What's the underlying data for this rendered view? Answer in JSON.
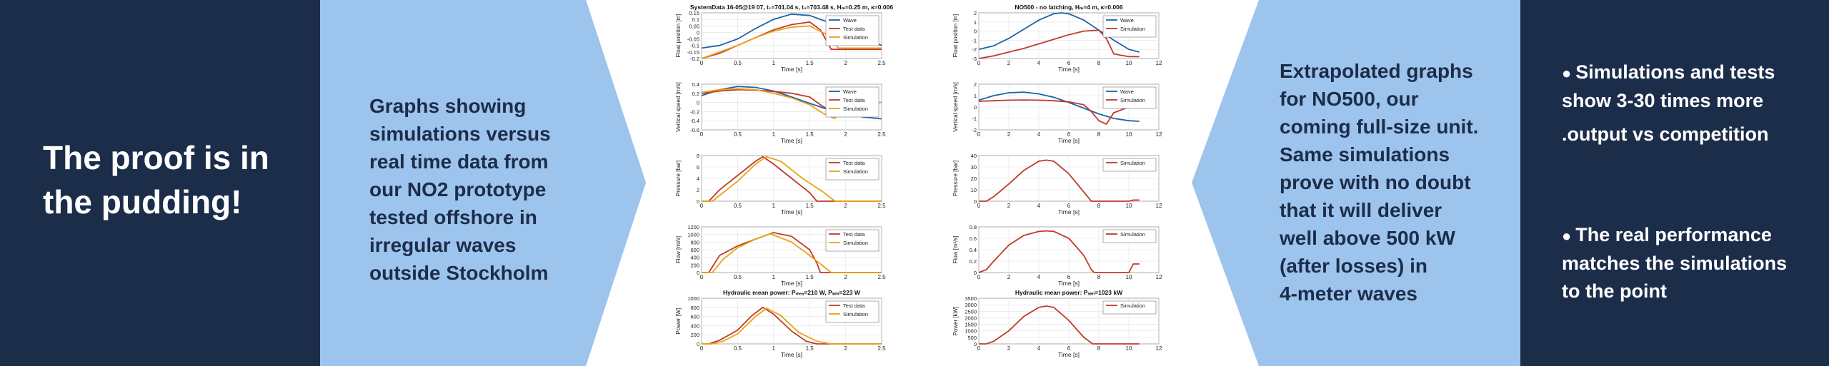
{
  "left_panel": {
    "headline_line1": "The proof is in",
    "headline_line2": "the pudding!"
  },
  "blue_left": {
    "lines": [
      "Graphs showing",
      "simulations versus",
      "real time data from",
      "our NO2 prototype",
      "tested offshore in",
      "irregular waves",
      "outside Stockholm"
    ]
  },
  "blue_right": {
    "lines": [
      "Extrapolated graphs",
      "for NO500, our",
      "coming full-size unit.",
      "Same simulations",
      "prove with no doubt",
      "that it will deliver",
      "well above 500 kW",
      "(after losses) in",
      "4-meter waves"
    ]
  },
  "right_panel": {
    "bullet1_line1": "Simulations and tests",
    "bullet1_line2": "show 3-30 times more",
    "bullet1_line3": ".output vs competition",
    "bullet2_line1": "The real performance",
    "bullet2_line2": "matches the simulations",
    "bullet2_line3": "to the point",
    "bullet_glyph": "●"
  },
  "colors": {
    "navy": "#1c2d4a",
    "light_blue": "#9dc4ec",
    "wave": "#1f63a8",
    "test_data": "#c0392b",
    "simulation": "#e8a317"
  },
  "chart_data": [
    {
      "type": "line",
      "id": "l1",
      "title": "SystemData 16-05@19 07, t₁=701.04 s, t₂=703.48 s, Hₘ=0.25 m, κ=0.006",
      "xlabel": "Time [s]",
      "ylabel": "Float position [m]",
      "xlim": [
        0,
        2.5
      ],
      "ylim": [
        -0.2,
        0.15
      ],
      "xticks": [
        0,
        0.5,
        1,
        1.5,
        2,
        2.5
      ],
      "yticks": [
        -0.2,
        -0.15,
        -0.1,
        -0.05,
        0,
        0.05,
        0.1,
        0.15
      ],
      "grid": true,
      "legend": "top-right",
      "series": [
        {
          "name": "Wave",
          "color": "wave",
          "x": [
            0,
            0.25,
            0.5,
            0.75,
            1,
            1.25,
            1.5,
            1.75,
            2,
            2.25,
            2.5
          ],
          "y": [
            -0.12,
            -0.1,
            -0.05,
            0.03,
            0.1,
            0.14,
            0.13,
            0.08,
            0.02,
            -0.04,
            -0.1
          ]
        },
        {
          "name": "Test data",
          "color": "test_data",
          "x": [
            0,
            0.25,
            0.5,
            0.75,
            1,
            1.25,
            1.5,
            1.65,
            1.72,
            1.8,
            2.5
          ],
          "y": [
            -0.2,
            -0.16,
            -0.1,
            -0.04,
            0.02,
            0.06,
            0.08,
            0.02,
            -0.05,
            -0.13,
            -0.13
          ]
        },
        {
          "name": "Simulation",
          "color": "simulation",
          "x": [
            0,
            0.25,
            0.5,
            0.75,
            1,
            1.25,
            1.5,
            1.75,
            1.9,
            2.5
          ],
          "y": [
            -0.2,
            -0.15,
            -0.1,
            -0.04,
            0.01,
            0.04,
            0.05,
            -0.02,
            -0.12,
            -0.12
          ]
        }
      ]
    },
    {
      "type": "line",
      "id": "l2",
      "title": "",
      "xlabel": "Time [s]",
      "ylabel": "Vertical speed [m/s]",
      "xlim": [
        0,
        2.5
      ],
      "ylim": [
        -0.6,
        0.4
      ],
      "xticks": [
        0,
        0.5,
        1,
        1.5,
        2,
        2.5
      ],
      "yticks": [
        -0.6,
        -0.4,
        -0.2,
        0,
        0.2,
        0.4
      ],
      "grid": true,
      "legend": "top-right",
      "series": [
        {
          "name": "Wave",
          "color": "wave",
          "x": [
            0,
            0.25,
            0.5,
            0.75,
            1,
            1.25,
            1.5,
            1.75,
            2,
            2.25,
            2.5
          ],
          "y": [
            0.15,
            0.28,
            0.35,
            0.33,
            0.25,
            0.12,
            -0.02,
            -0.15,
            -0.25,
            -0.32,
            -0.36
          ]
        },
        {
          "name": "Test data",
          "color": "test_data",
          "x": [
            0,
            0.25,
            0.5,
            0.75,
            1,
            1.25,
            1.5,
            1.65,
            1.8,
            1.9,
            2.5
          ],
          "y": [
            0.2,
            0.25,
            0.28,
            0.27,
            0.24,
            0.2,
            0.12,
            -0.05,
            -0.2,
            0,
            0
          ]
        },
        {
          "name": "Simulation",
          "color": "simulation",
          "x": [
            0,
            0.25,
            0.5,
            0.75,
            1,
            1.25,
            1.5,
            1.7,
            1.85,
            2,
            2.5
          ],
          "y": [
            0.22,
            0.28,
            0.3,
            0.28,
            0.2,
            0.1,
            -0.05,
            -0.25,
            -0.35,
            -0.05,
            0
          ]
        }
      ]
    },
    {
      "type": "line",
      "id": "l3",
      "title": "",
      "xlabel": "Time [s]",
      "ylabel": "Pressure [bar]",
      "xlim": [
        0,
        2.5
      ],
      "ylim": [
        0,
        8
      ],
      "xticks": [
        0,
        0.5,
        1,
        1.5,
        2,
        2.5
      ],
      "yticks": [
        0,
        2,
        4,
        6,
        8
      ],
      "grid": true,
      "legend": "top-right",
      "series": [
        {
          "name": "Test data",
          "color": "test_data",
          "x": [
            0,
            0.1,
            0.25,
            0.5,
            0.75,
            0.85,
            1,
            1.25,
            1.5,
            1.6,
            2.5
          ],
          "y": [
            0,
            0,
            2,
            4.5,
            7,
            7.8,
            6.5,
            4,
            1.5,
            0,
            0
          ]
        },
        {
          "name": "Simulation",
          "color": "simulation",
          "x": [
            0,
            0.15,
            0.3,
            0.5,
            0.75,
            0.9,
            1.1,
            1.4,
            1.7,
            1.85,
            2.5
          ],
          "y": [
            0,
            0,
            1.5,
            3.5,
            6.5,
            7.8,
            7,
            4,
            1.5,
            0,
            0
          ]
        }
      ]
    },
    {
      "type": "line",
      "id": "l4",
      "title": "",
      "xlabel": "Time [s]",
      "ylabel": "Flow [ml/s]",
      "xlim": [
        0,
        2.5
      ],
      "ylim": [
        0,
        1200
      ],
      "xticks": [
        0,
        0.5,
        1,
        1.5,
        2,
        2.5
      ],
      "yticks": [
        0,
        200,
        400,
        600,
        800,
        1000,
        1200
      ],
      "grid": true,
      "legend": "top-right",
      "series": [
        {
          "name": "Test data",
          "color": "test_data",
          "x": [
            0,
            0.1,
            0.25,
            0.5,
            0.75,
            1,
            1.25,
            1.5,
            1.6,
            1.65,
            2.5
          ],
          "y": [
            0,
            0,
            450,
            700,
            880,
            1050,
            950,
            600,
            250,
            0,
            0
          ]
        },
        {
          "name": "Simulation",
          "color": "simulation",
          "x": [
            0,
            0.15,
            0.3,
            0.5,
            0.75,
            0.95,
            1.25,
            1.5,
            1.7,
            1.8,
            2.5
          ],
          "y": [
            0,
            0,
            350,
            650,
            880,
            1020,
            800,
            450,
            150,
            0,
            0
          ]
        }
      ]
    },
    {
      "type": "line",
      "id": "l5",
      "title": "Hydraulic mean power: Pₘₑₐ=210 W, Pₛᵢₘ=223 W",
      "xlabel": "Time [s]",
      "ylabel": "Power [W]",
      "xlim": [
        0,
        2.5
      ],
      "ylim": [
        0,
        1000
      ],
      "xticks": [
        0,
        0.5,
        1,
        1.5,
        2,
        2.5
      ],
      "yticks": [
        0,
        200,
        400,
        600,
        800,
        1000
      ],
      "grid": true,
      "legend": "top-right",
      "series": [
        {
          "name": "Test data",
          "color": "test_data",
          "x": [
            0,
            0.1,
            0.25,
            0.5,
            0.7,
            0.85,
            1,
            1.25,
            1.45,
            1.6,
            2.5
          ],
          "y": [
            0,
            0,
            80,
            300,
            620,
            800,
            650,
            280,
            60,
            0,
            0
          ]
        },
        {
          "name": "Simulation",
          "color": "simulation",
          "x": [
            0,
            0.15,
            0.3,
            0.5,
            0.75,
            0.9,
            1.1,
            1.35,
            1.6,
            1.8,
            2.5
          ],
          "y": [
            0,
            0,
            60,
            220,
            600,
            780,
            620,
            250,
            60,
            0,
            0
          ]
        }
      ]
    },
    {
      "type": "line",
      "id": "r1",
      "title": "NO500 - no latching, Hₘ=4 m, κ=0.006",
      "xlabel": "Time [s]",
      "ylabel": "Float position [m]",
      "xlim": [
        0,
        12
      ],
      "ylim": [
        -3,
        2
      ],
      "xticks": [
        0,
        2,
        4,
        6,
        8,
        10,
        12
      ],
      "yticks": [
        -3,
        -2,
        -1,
        0,
        1,
        2
      ],
      "grid": true,
      "legend": "top-right",
      "series": [
        {
          "name": "Wave",
          "color": "wave",
          "x": [
            0,
            1,
            2,
            3,
            4,
            5,
            5.5,
            6,
            7,
            8,
            9,
            10,
            10.7
          ],
          "y": [
            -2,
            -1.6,
            -0.8,
            0.2,
            1.2,
            1.9,
            2,
            1.9,
            1.2,
            0.1,
            -1,
            -2,
            -2.3
          ]
        },
        {
          "name": "Simulation",
          "color": "test_data",
          "x": [
            0,
            1,
            2,
            3,
            4,
            5,
            6,
            7,
            8,
            8.5,
            9,
            10,
            10.7
          ],
          "y": [
            -3,
            -2.7,
            -2.3,
            -1.9,
            -1.4,
            -0.9,
            -0.4,
            0,
            0.1,
            -0.8,
            -2.5,
            -2.8,
            -2.8
          ]
        }
      ]
    },
    {
      "type": "line",
      "id": "r2",
      "title": "",
      "xlabel": "Time [s]",
      "ylabel": "Vertical speed [m/s]",
      "xlim": [
        0,
        12
      ],
      "ylim": [
        -2,
        2
      ],
      "xticks": [
        0,
        2,
        4,
        6,
        8,
        10,
        12
      ],
      "yticks": [
        -2,
        -1,
        0,
        1,
        2
      ],
      "grid": true,
      "legend": "top-right",
      "series": [
        {
          "name": "Wave",
          "color": "wave",
          "x": [
            0,
            1,
            2,
            3,
            4,
            5,
            6,
            7,
            8,
            9,
            10,
            10.7
          ],
          "y": [
            0.6,
            1,
            1.25,
            1.3,
            1.15,
            0.85,
            0.4,
            -0.1,
            -0.6,
            -1,
            -1.2,
            -1.25
          ]
        },
        {
          "name": "Simulation",
          "color": "test_data",
          "x": [
            0,
            1,
            2,
            3,
            4,
            5,
            6,
            7,
            7.5,
            8,
            8.5,
            9,
            10,
            10.7
          ],
          "y": [
            0.5,
            0.55,
            0.6,
            0.62,
            0.6,
            0.55,
            0.45,
            0.2,
            -0.4,
            -1.2,
            -1.5,
            -0.5,
            0,
            0
          ]
        }
      ]
    },
    {
      "type": "line",
      "id": "r3",
      "title": "",
      "xlabel": "Time [s]",
      "ylabel": "Pressure [bar]",
      "xlim": [
        0,
        12
      ],
      "ylim": [
        0,
        40
      ],
      "xticks": [
        0,
        2,
        4,
        6,
        8,
        10,
        12
      ],
      "yticks": [
        0,
        10,
        20,
        30,
        40
      ],
      "grid": true,
      "legend": "top-right",
      "series": [
        {
          "name": "Simulation",
          "color": "test_data",
          "x": [
            0,
            0.5,
            1,
            2,
            3,
            4,
            4.5,
            5,
            6,
            7,
            7.5,
            8,
            10,
            10.3,
            10.7
          ],
          "y": [
            0,
            0,
            4,
            15,
            27,
            35,
            36,
            35,
            24,
            8,
            0,
            0,
            0,
            1,
            1
          ]
        }
      ]
    },
    {
      "type": "line",
      "id": "r4",
      "title": "",
      "xlabel": "Time [s]",
      "ylabel": "Flow [m³/s]",
      "xlim": [
        0,
        12
      ],
      "ylim": [
        0,
        0.8
      ],
      "xticks": [
        0,
        2,
        4,
        6,
        8,
        10,
        12
      ],
      "yticks": [
        0,
        0.2,
        0.4,
        0.6,
        0.8
      ],
      "grid": true,
      "legend": "top-right",
      "series": [
        {
          "name": "Simulation",
          "color": "test_data",
          "x": [
            0,
            0.5,
            1,
            2,
            3,
            4,
            4.5,
            5,
            6,
            7,
            7.5,
            7.7,
            10,
            10.3,
            10.7
          ],
          "y": [
            0,
            0.05,
            0.2,
            0.48,
            0.65,
            0.72,
            0.73,
            0.72,
            0.6,
            0.3,
            0.05,
            0,
            0,
            0.15,
            0.15
          ]
        }
      ]
    },
    {
      "type": "line",
      "id": "r5",
      "title": "Hydraulic mean power: Pₛᵢₘ=1023 kW",
      "xlabel": "Time [s]",
      "ylabel": "Power [kW]",
      "xlim": [
        0,
        12
      ],
      "ylim": [
        0,
        3500
      ],
      "xticks": [
        0,
        2,
        4,
        6,
        8,
        10,
        12
      ],
      "yticks": [
        0,
        500,
        1000,
        1500,
        2000,
        2500,
        3000,
        3500
      ],
      "grid": true,
      "legend": "top-right",
      "series": [
        {
          "name": "Simulation",
          "color": "test_data",
          "x": [
            0,
            0.5,
            1,
            2,
            3,
            4,
            4.5,
            5,
            6,
            7,
            7.6,
            10,
            10.7
          ],
          "y": [
            0,
            0,
            200,
            1000,
            2100,
            2800,
            2900,
            2800,
            1800,
            500,
            0,
            0,
            0
          ]
        }
      ]
    }
  ]
}
